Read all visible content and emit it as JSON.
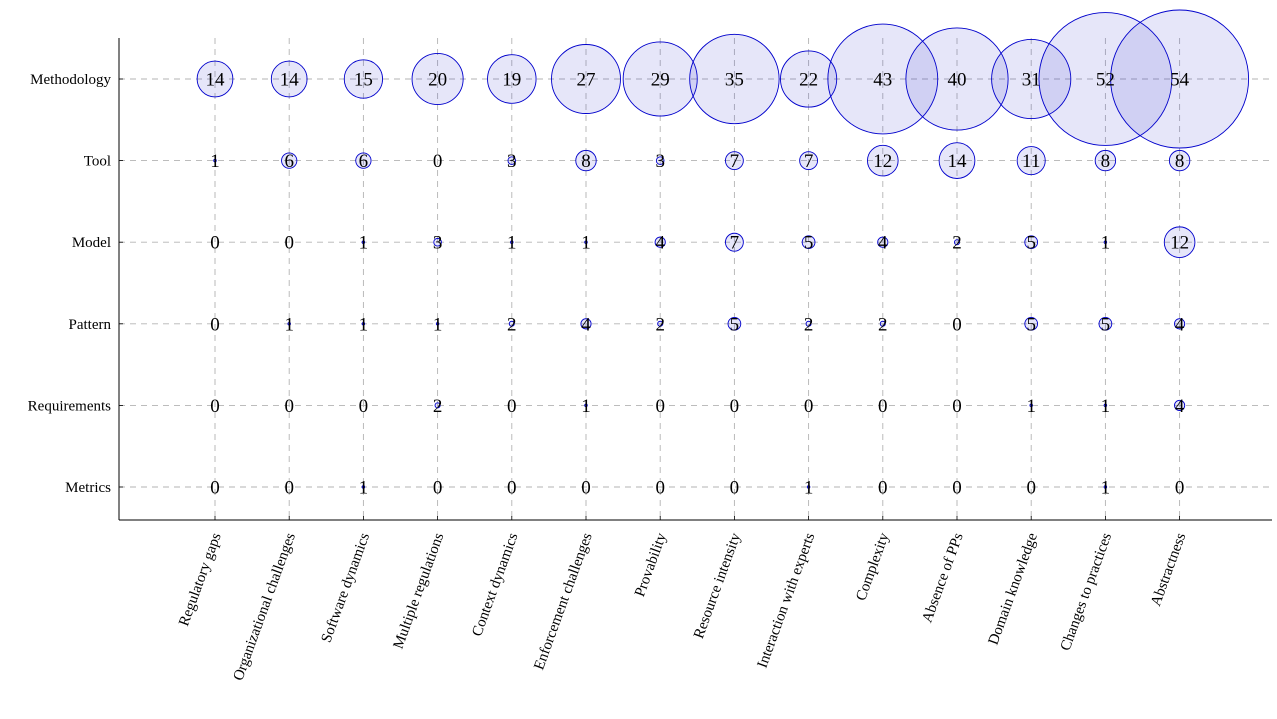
{
  "chart_data": {
    "type": "bubble",
    "categories": [
      "Regulatory gaps",
      "Organizational challenges",
      "Software dynamics",
      "Multiple regulations",
      "Context dynamics",
      "Enforcement challenges",
      "Provability",
      "Resource intensity",
      "Interaction with experts",
      "Complexity",
      "Absence of PPs",
      "Domain knowledge",
      "Changes to practices",
      "Abstractness"
    ],
    "rows": [
      "Methodology",
      "Tool",
      "Model",
      "Pattern",
      "Requirements",
      "Metrics"
    ],
    "values": [
      [
        14,
        14,
        15,
        20,
        19,
        27,
        29,
        35,
        22,
        43,
        40,
        31,
        52,
        54
      ],
      [
        1,
        6,
        6,
        0,
        3,
        8,
        3,
        7,
        7,
        12,
        14,
        11,
        8,
        8
      ],
      [
        0,
        0,
        1,
        3,
        1,
        1,
        4,
        7,
        5,
        4,
        2,
        5,
        1,
        12
      ],
      [
        0,
        1,
        1,
        1,
        2,
        4,
        2,
        5,
        2,
        2,
        0,
        5,
        5,
        4
      ],
      [
        0,
        0,
        0,
        2,
        0,
        1,
        0,
        0,
        0,
        0,
        0,
        1,
        1,
        4
      ],
      [
        0,
        0,
        1,
        0,
        0,
        0,
        0,
        0,
        1,
        0,
        0,
        0,
        1,
        0
      ]
    ],
    "grid": true,
    "bubble_fill": "#3333cc",
    "bubble_stroke": "#0000cc",
    "grid_color": "#b3b3b3"
  }
}
